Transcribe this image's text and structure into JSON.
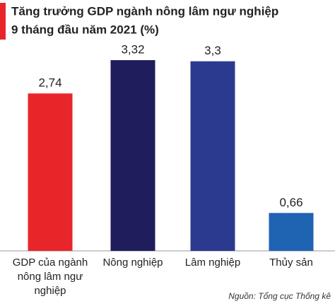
{
  "chart_data": {
    "type": "bar",
    "title": [
      "Tăng trưởng GDP ngành nông lâm ngư nghiệp",
      "9 tháng đầu năm 2021 (%)"
    ],
    "categories": [
      "GDP của ngành nông lâm ngư nghiệp",
      "Nông nghiệp",
      "Lâm nghiệp",
      "Thủy sản"
    ],
    "values": [
      2.74,
      3.32,
      3.3,
      0.66
    ],
    "value_labels": [
      "2,74",
      "3,32",
      "3,3",
      "0,66"
    ],
    "colors": [
      "#e8262a",
      "#1f1d5c",
      "#2b3a8e",
      "#1f63b3"
    ],
    "source": "Nguồn: Tổng cục Thống kê"
  }
}
